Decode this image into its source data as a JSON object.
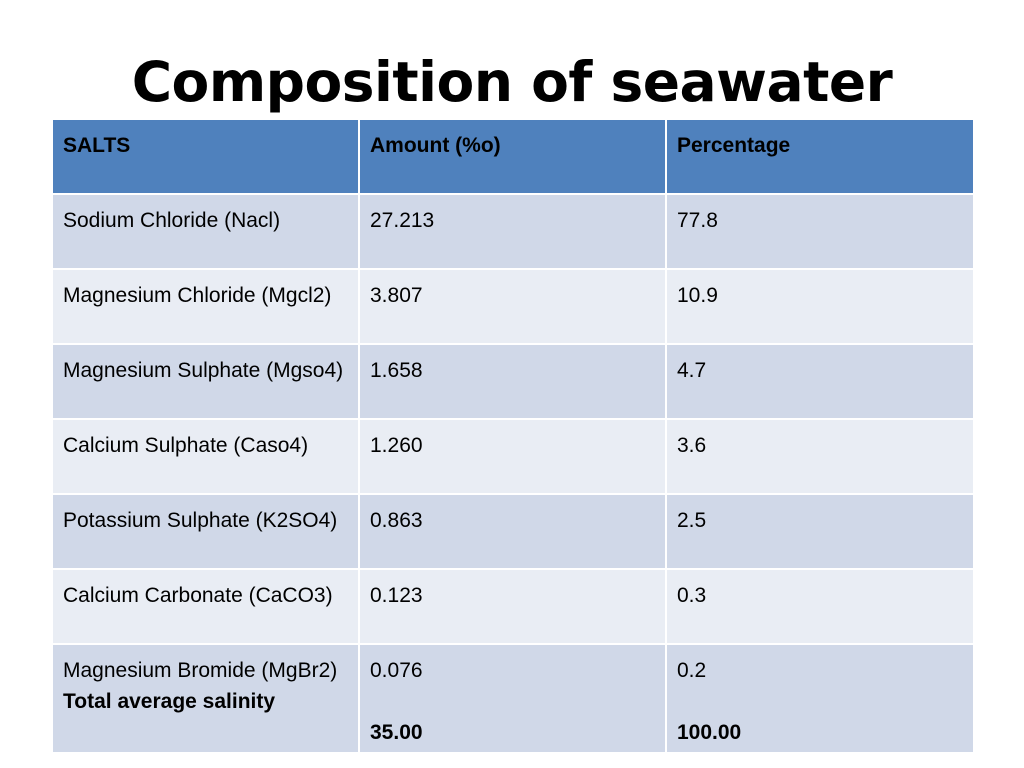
{
  "title": "Composition of seawater",
  "table": {
    "headers": [
      "SALTS",
      "Amount (%o)",
      "Percentage"
    ],
    "rows": [
      {
        "salt": "Sodium Chloride (Nacl)",
        "amount": "27.213",
        "percentage": "77.8"
      },
      {
        "salt": "Magnesium Chloride (Mgcl2)",
        "amount": "3.807",
        "percentage": "10.9"
      },
      {
        "salt": "Magnesium Sulphate (Mgso4)",
        "amount": "1.658",
        "percentage": "4.7"
      },
      {
        "salt": "Calcium Sulphate (Caso4)",
        "amount": "1.260",
        "percentage": "3.6"
      },
      {
        "salt": "Potassium Sulphate (K2SO4)",
        "amount": "0.863",
        "percentage": "2.5"
      },
      {
        "salt": "Calcium Carbonate (CaCO3)",
        "amount": "0.123",
        "percentage": "0.3"
      },
      {
        "salt": "Magnesium Bromide (MgBr2)",
        "amount": "0.076",
        "percentage": "0.2"
      }
    ],
    "total": {
      "label": "Total average salinity",
      "amount": "35.00",
      "percentage": "100.00"
    },
    "colors": {
      "header": "#4f81bd",
      "row_dark": "#d0d8e8",
      "row_light": "#e9edf4"
    }
  }
}
